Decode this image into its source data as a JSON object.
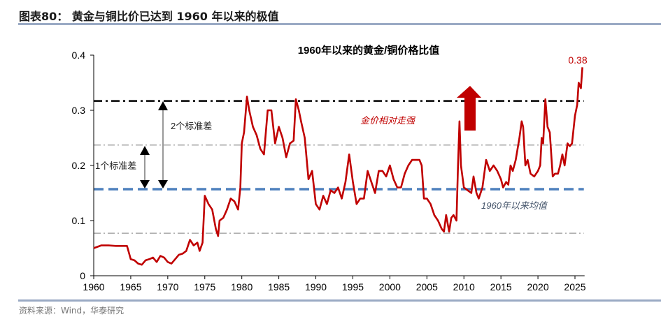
{
  "figure_title": "图表80：  黄金与铜比价已达到 1960 年以来的极值",
  "source": "资料来源：Wind，华泰研究",
  "colors": {
    "series": "#c00000",
    "mean_line": "#4f81bd",
    "two_sd_line": "#000000",
    "one_sd_line": "#a6a6a6",
    "rule": "#9aaac4"
  },
  "chart_data": {
    "type": "line",
    "title": "1960年以来的黄金/铜价格比值",
    "xlabel": "",
    "ylabel": "",
    "xlim": [
      1960,
      2026
    ],
    "ylim": [
      0,
      0.4
    ],
    "grid": false,
    "x_ticks": [
      "1960",
      "1965",
      "1970",
      "1975",
      "1980",
      "1985",
      "1990",
      "1995",
      "2000",
      "2005",
      "2010",
      "2015",
      "2020",
      "2025"
    ],
    "y_ticks": [
      "0",
      "0.1",
      "0.2",
      "0.3",
      "0.4"
    ],
    "reference_lines": {
      "mean": 0.157,
      "plus_1sd": 0.237,
      "minus_1sd": 0.077,
      "plus_2sd": 0.317
    },
    "annotations": {
      "last_value": "0.38",
      "gold_stronger": "金价相对走强",
      "mean_label": "1960年以来均值",
      "two_sd": "2个标准差",
      "one_sd": "1个标准差"
    },
    "series": [
      {
        "x": [
          1960,
          1961,
          1962,
          1963,
          1964,
          1964.5,
          1965,
          1965.5,
          1966,
          1966.5,
          1967,
          1967.5,
          1968,
          1968.5,
          1969,
          1969.5,
          1970,
          1970.5,
          1971,
          1971.5,
          1972,
          1972.5,
          1973,
          1973.5,
          1974,
          1974.3,
          1974.7,
          1975,
          1975.5,
          1976,
          1976.5,
          1976.8,
          1977,
          1977.5,
          1978,
          1978.5,
          1979,
          1979.5,
          1979.8,
          1980,
          1980.3,
          1980.7,
          1981,
          1981.5,
          1982,
          1982.5,
          1983,
          1983.5,
          1984,
          1984.5,
          1985,
          1985.5,
          1986,
          1986.5,
          1987,
          1987.3,
          1987.7,
          1988,
          1988.5,
          1989,
          1989.5,
          1990,
          1990.5,
          1991,
          1991.5,
          1992,
          1992.5,
          1993,
          1993.5,
          1994,
          1994.5,
          1995,
          1995.5,
          1996,
          1996.5,
          1997,
          1997.5,
          1998,
          1998.5,
          1999,
          1999.5,
          2000,
          2000.5,
          2001,
          2001.5,
          2002,
          2002.5,
          2003,
          2003.5,
          2004,
          2004.3,
          2004.6,
          2005,
          2005.5,
          2006,
          2006.5,
          2007,
          2007.3,
          2007.6,
          2008,
          2008.3,
          2008.6,
          2009,
          2009.2,
          2009.4,
          2009.6,
          2010,
          2010.5,
          2011,
          2011.3,
          2011.7,
          2012,
          2012.5,
          2013,
          2013.5,
          2014,
          2014.5,
          2015,
          2015.3,
          2015.7,
          2016,
          2016.3,
          2016.6,
          2017,
          2017.5,
          2017.8,
          2018,
          2018.3,
          2018.6,
          2019,
          2019.5,
          2020,
          2020.3,
          2020.5,
          2020.7,
          2021,
          2021.3,
          2021.6,
          2022,
          2022.3,
          2022.7,
          2023,
          2023.3,
          2023.6,
          2024,
          2024.3,
          2024.6,
          2025,
          2025.3,
          2025.5,
          2025.8,
          2026
        ],
        "values": [
          0.05,
          0.055,
          0.055,
          0.054,
          0.054,
          0.054,
          0.03,
          0.028,
          0.022,
          0.02,
          0.028,
          0.03,
          0.033,
          0.025,
          0.036,
          0.033,
          0.025,
          0.022,
          0.03,
          0.038,
          0.04,
          0.045,
          0.065,
          0.055,
          0.06,
          0.045,
          0.06,
          0.145,
          0.13,
          0.12,
          0.085,
          0.072,
          0.1,
          0.105,
          0.12,
          0.14,
          0.135,
          0.12,
          0.16,
          0.24,
          0.26,
          0.325,
          0.3,
          0.27,
          0.255,
          0.23,
          0.22,
          0.3,
          0.3,
          0.24,
          0.27,
          0.25,
          0.215,
          0.24,
          0.245,
          0.32,
          0.3,
          0.28,
          0.25,
          0.175,
          0.19,
          0.13,
          0.12,
          0.145,
          0.13,
          0.155,
          0.15,
          0.16,
          0.14,
          0.17,
          0.22,
          0.17,
          0.13,
          0.14,
          0.14,
          0.19,
          0.17,
          0.15,
          0.19,
          0.19,
          0.18,
          0.2,
          0.175,
          0.16,
          0.16,
          0.185,
          0.2,
          0.21,
          0.21,
          0.21,
          0.2,
          0.14,
          0.14,
          0.13,
          0.11,
          0.1,
          0.085,
          0.08,
          0.11,
          0.08,
          0.105,
          0.11,
          0.1,
          0.2,
          0.28,
          0.2,
          0.16,
          0.155,
          0.15,
          0.18,
          0.15,
          0.14,
          0.16,
          0.21,
          0.19,
          0.2,
          0.19,
          0.175,
          0.16,
          0.17,
          0.165,
          0.2,
          0.19,
          0.21,
          0.25,
          0.28,
          0.27,
          0.2,
          0.21,
          0.185,
          0.18,
          0.19,
          0.2,
          0.25,
          0.24,
          0.32,
          0.27,
          0.26,
          0.18,
          0.185,
          0.185,
          0.2,
          0.22,
          0.2,
          0.24,
          0.235,
          0.24,
          0.29,
          0.31,
          0.35,
          0.34,
          0.378
        ]
      }
    ]
  }
}
